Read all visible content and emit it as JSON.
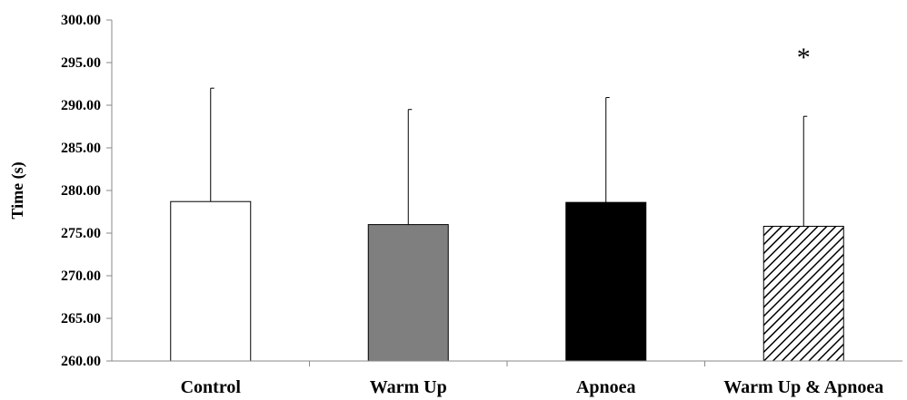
{
  "chart_data": {
    "type": "bar",
    "title": "",
    "xlabel": "",
    "ylabel": "Time (s)",
    "ylim": [
      260,
      300
    ],
    "yticks": [
      "260.00",
      "265.00",
      "270.00",
      "275.00",
      "280.00",
      "285.00",
      "290.00",
      "295.00",
      "300.00"
    ],
    "categories": [
      "Control",
      "Warm Up",
      "Apnoea",
      "Warm Up & Apnoea"
    ],
    "values": [
      278.7,
      276.0,
      278.6,
      275.8
    ],
    "errors_upper": [
      13.3,
      13.5,
      12.3,
      12.9
    ],
    "fills": [
      "white",
      "gray",
      "black",
      "hatched"
    ],
    "colors": {
      "white": "#ffffff",
      "gray": "#7f7f7f",
      "black": "#000000",
      "hatched": "#000000",
      "outline": "#000000"
    },
    "annotations": [
      {
        "category": "Warm Up & Apnoea",
        "text": "*"
      }
    ],
    "grid": false,
    "legend": "none"
  }
}
